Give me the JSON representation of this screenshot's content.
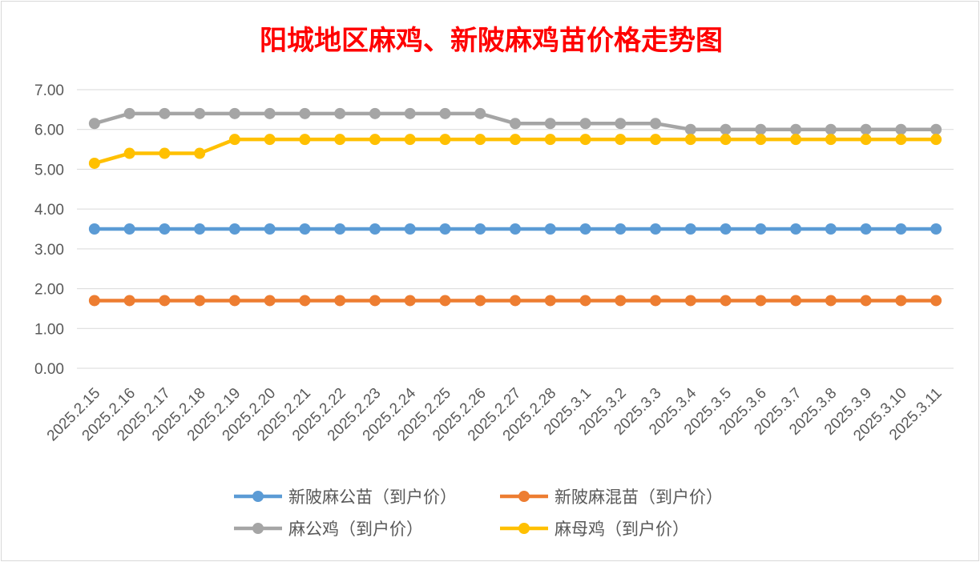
{
  "chart_data": {
    "type": "line",
    "title": "阳城地区麻鸡、新陂麻鸡苗价格走势图",
    "xlabel": "",
    "ylabel": "",
    "ylim": [
      0,
      7
    ],
    "y_tick_labels": [
      "0.00",
      "1.00",
      "2.00",
      "3.00",
      "4.00",
      "5.00",
      "6.00",
      "7.00"
    ],
    "grid": true,
    "legend_position": "bottom",
    "categories": [
      "2025.2.15",
      "2025.2.16",
      "2025.2.17",
      "2025.2.18",
      "2025.2.19",
      "2025.2.20",
      "2025.2.21",
      "2025.2.22",
      "2025.2.23",
      "2025.2.24",
      "2025.2.25",
      "2025.2.26",
      "2025.2.27",
      "2025.2.28",
      "2025.3.1",
      "2025.3.2",
      "2025.3.3",
      "2025.3.4",
      "2025.3.5",
      "2025.3.6",
      "2025.3.7",
      "2025.3.8",
      "2025.3.9",
      "2025.3.10",
      "2025.3.11"
    ],
    "series": [
      {
        "name": "新陂麻公苗（到户价）",
        "color": "#5b9bd5",
        "values": [
          3.5,
          3.5,
          3.5,
          3.5,
          3.5,
          3.5,
          3.5,
          3.5,
          3.5,
          3.5,
          3.5,
          3.5,
          3.5,
          3.5,
          3.5,
          3.5,
          3.5,
          3.5,
          3.5,
          3.5,
          3.5,
          3.5,
          3.5,
          3.5,
          3.5
        ]
      },
      {
        "name": "新陂麻混苗（到户价）",
        "color": "#ed7d31",
        "values": [
          1.7,
          1.7,
          1.7,
          1.7,
          1.7,
          1.7,
          1.7,
          1.7,
          1.7,
          1.7,
          1.7,
          1.7,
          1.7,
          1.7,
          1.7,
          1.7,
          1.7,
          1.7,
          1.7,
          1.7,
          1.7,
          1.7,
          1.7,
          1.7,
          1.7
        ]
      },
      {
        "name": "麻公鸡（到户价）",
        "color": "#a5a5a5",
        "values": [
          6.15,
          6.4,
          6.4,
          6.4,
          6.4,
          6.4,
          6.4,
          6.4,
          6.4,
          6.4,
          6.4,
          6.4,
          6.15,
          6.15,
          6.15,
          6.15,
          6.15,
          6.0,
          6.0,
          6.0,
          6.0,
          6.0,
          6.0,
          6.0,
          6.0
        ]
      },
      {
        "name": "麻母鸡（到户价）",
        "color": "#ffc000",
        "values": [
          5.15,
          5.4,
          5.4,
          5.4,
          5.75,
          5.75,
          5.75,
          5.75,
          5.75,
          5.75,
          5.75,
          5.75,
          5.75,
          5.75,
          5.75,
          5.75,
          5.75,
          5.75,
          5.75,
          5.75,
          5.75,
          5.75,
          5.75,
          5.75,
          5.75
        ]
      }
    ]
  },
  "style": {
    "title_color": "#ff0000",
    "grid_color": "#d9d9d9",
    "text_color": "#595959"
  }
}
